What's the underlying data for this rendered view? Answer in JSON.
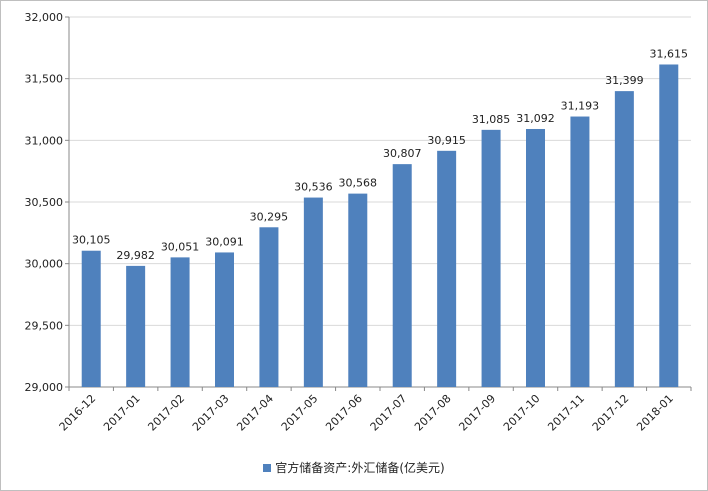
{
  "chart_data": {
    "type": "bar",
    "categories": [
      "2016-12",
      "2017-01",
      "2017-02",
      "2017-03",
      "2017-04",
      "2017-05",
      "2017-06",
      "2017-07",
      "2017-08",
      "2017-09",
      "2017-10",
      "2017-11",
      "2017-12",
      "2018-01"
    ],
    "series": [
      {
        "name": "官方储备资产:外汇储备(亿美元)",
        "values": [
          30105,
          29982,
          30051,
          30091,
          30295,
          30536,
          30568,
          30807,
          30915,
          31085,
          31092,
          31193,
          31399,
          31615
        ],
        "labels": [
          "30,105",
          "29,982",
          "30,051",
          "30,091",
          "30,295",
          "30,536",
          "30,568",
          "30,807",
          "30,915",
          "31,085",
          "31,092",
          "31,193",
          "31,399",
          "31,615"
        ]
      }
    ],
    "ylim": [
      29000,
      32000
    ],
    "yticks": [
      29000,
      29500,
      30000,
      30500,
      31000,
      31500,
      32000
    ],
    "ytick_labels": [
      "29,000",
      "29,500",
      "30,000",
      "30,500",
      "31,000",
      "31,500",
      "32,000"
    ],
    "grid": true,
    "legend_position": "bottom",
    "bar_color": "#4f81bd",
    "grid_color": "#d9d9d9",
    "axis_color": "#888888"
  }
}
